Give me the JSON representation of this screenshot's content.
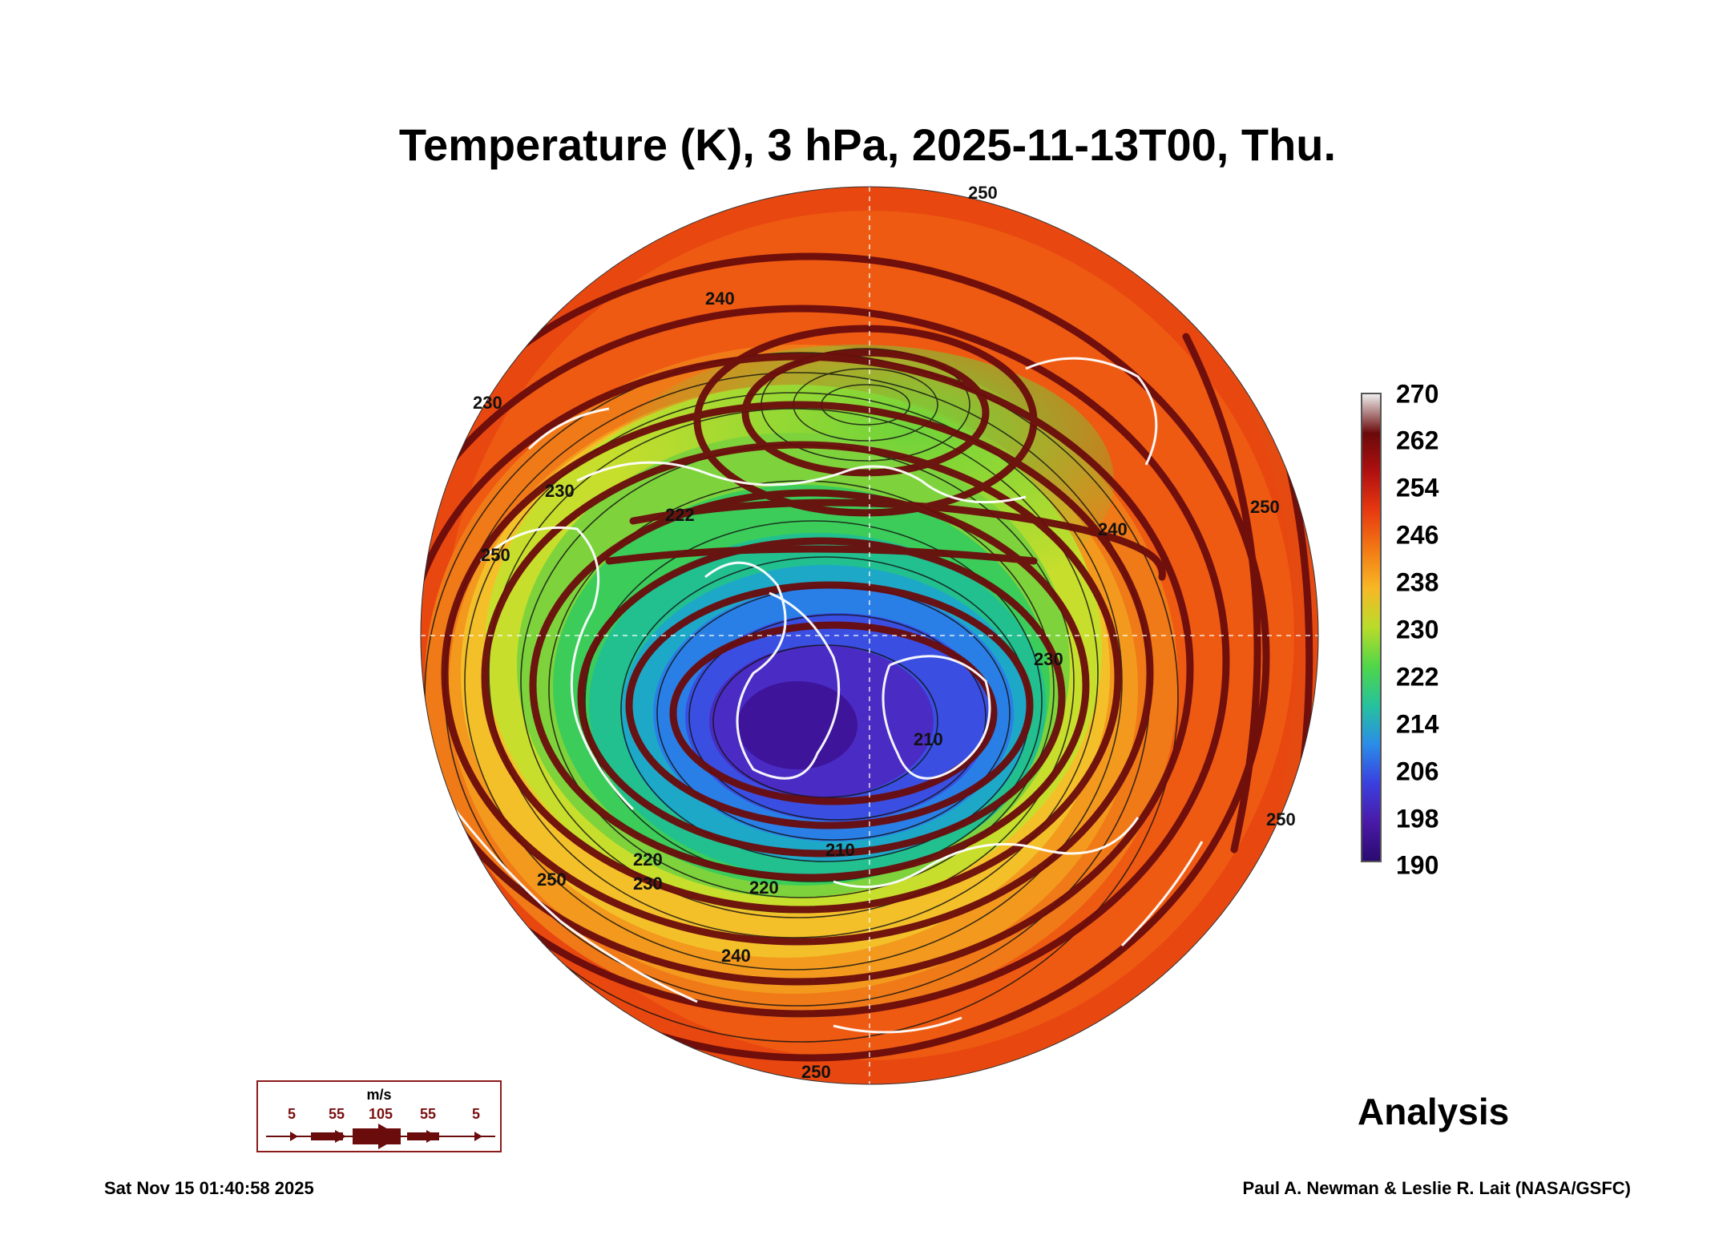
{
  "title": "Temperature (K), 3 hPa, 2025-11-13T00, Thu.",
  "colorbar": {
    "labels": [
      "270",
      "262",
      "254",
      "246",
      "238",
      "230",
      "222",
      "214",
      "206",
      "198",
      "190"
    ],
    "stops": [
      "#eeeeee",
      "#6b0a0a",
      "#b01010",
      "#e83a10",
      "#f37a14",
      "#f7b825",
      "#b9dc2a",
      "#4fd649",
      "#26c29c",
      "#2a8de8",
      "#3a40e0",
      "#4a1aa8",
      "#2a0a70"
    ]
  },
  "contour_labels": [
    "250",
    "240",
    "230",
    "222",
    "210",
    "220",
    "240",
    "250",
    "230",
    "240",
    "250",
    "250",
    "230",
    "250",
    "220",
    "210",
    "230",
    "250"
  ],
  "analysis_label": "Analysis",
  "legend": {
    "unit": "m/s",
    "labels": [
      "5",
      "55",
      "105",
      "55",
      "5"
    ]
  },
  "timestamp": "Sat Nov 15 01:40:58 2025",
  "credit": "Paul A. Newman & Leslie R. Lait (NASA/GSFC)"
}
